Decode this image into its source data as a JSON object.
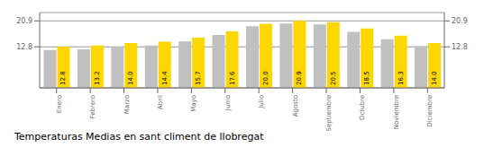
{
  "chart_data": {
    "type": "bar",
    "title": "Temperaturas Medias en sant climent de llobregat",
    "categories": [
      "Enero",
      "Febrero",
      "Marzo",
      "Abril",
      "Mayo",
      "Junio",
      "Julio",
      "Agosto",
      "Septiembre",
      "Octubre",
      "Noviembre",
      "Diciembre"
    ],
    "series": [
      {
        "color": "#C0C0C0",
        "values": [
          11.8,
          12.0,
          12.8,
          13.2,
          14.5,
          16.5,
          19.2,
          20.1,
          19.8,
          17.5,
          15.2,
          13.0
        ]
      },
      {
        "color": "#FFD700",
        "values": [
          12.8,
          13.2,
          14.0,
          14.4,
          15.7,
          17.6,
          20.0,
          20.9,
          20.5,
          18.5,
          16.3,
          14.0
        ],
        "value_labels": [
          "12.8",
          "13.2",
          "14.0",
          "14.4",
          "15.7",
          "17.6",
          "20.0",
          "20.9",
          "20.5",
          "18.5",
          "16.3",
          "14.0"
        ],
        "data_labels": true
      }
    ],
    "ylim": [
      0,
      23.5
    ],
    "yticks": [
      12.8,
      20.9
    ],
    "y2lim": [
      0,
      23.5
    ],
    "y2ticks": [
      12.8,
      20.9
    ],
    "grid": true
  }
}
